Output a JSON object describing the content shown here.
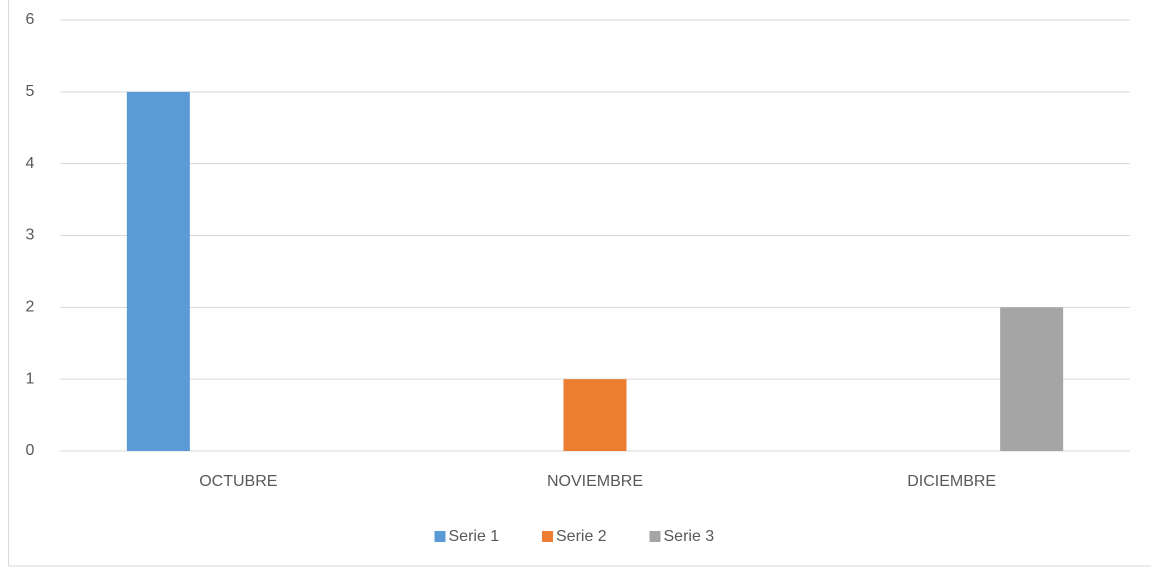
{
  "chart_data": {
    "type": "bar",
    "categories": [
      "OCTUBRE",
      "NOVIEMBRE",
      "DICIEMBRE"
    ],
    "series": [
      {
        "name": "Serie 1",
        "color": "#5b9bd5",
        "values": [
          5,
          null,
          null
        ]
      },
      {
        "name": "Serie 2",
        "color": "#ed7d31",
        "values": [
          null,
          1,
          null
        ]
      },
      {
        "name": "Serie 3",
        "color": "#a5a5a5",
        "values": [
          null,
          null,
          2
        ]
      }
    ],
    "ylim": [
      0,
      6
    ],
    "yticks": [
      0,
      1,
      2,
      3,
      4,
      5,
      6
    ],
    "grid": true,
    "legend": "bottom"
  }
}
